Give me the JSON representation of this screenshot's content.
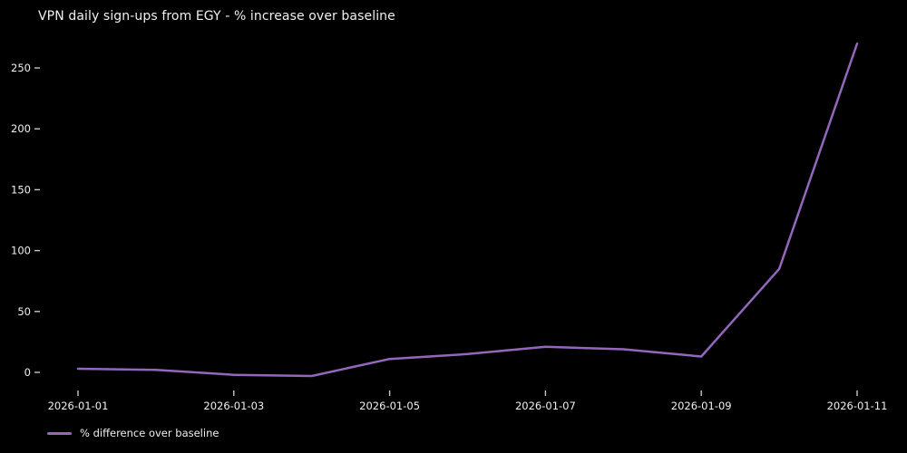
{
  "title": "VPN daily sign-ups from EGY - % increase over baseline",
  "colors": {
    "background": "#000000",
    "line": "#9467bd",
    "text": "#f0f0f0",
    "tick": "#c8c8c8"
  },
  "legend": {
    "label": "% difference over baseline"
  },
  "chart_data": {
    "type": "line",
    "title": "VPN daily sign-ups from EGY - % increase over baseline",
    "xlabel": "",
    "ylabel": "",
    "x": [
      "2026-01-01",
      "2026-01-02",
      "2026-01-03",
      "2026-01-04",
      "2026-01-05",
      "2026-01-06",
      "2026-01-07",
      "2026-01-08",
      "2026-01-09",
      "2026-01-10",
      "2026-01-11"
    ],
    "series": [
      {
        "name": "% difference over baseline",
        "values": [
          3,
          2,
          -2,
          -3,
          11,
          15,
          21,
          19,
          13,
          85,
          270
        ]
      }
    ],
    "xticks": [
      "2026-01-01",
      "2026-01-03",
      "2026-01-05",
      "2026-01-07",
      "2026-01-09",
      "2026-01-11"
    ],
    "yticks": [
      0,
      50,
      100,
      150,
      200,
      250
    ],
    "ylim": [
      -20,
      285
    ],
    "grid": false,
    "legend_position": "lower-left-below-axes"
  }
}
